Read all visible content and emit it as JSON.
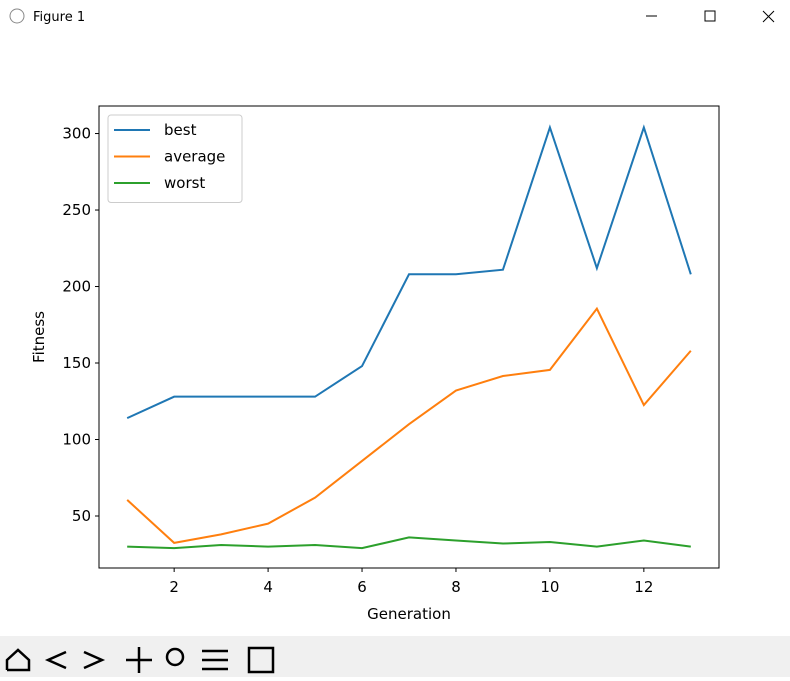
{
  "window": {
    "title": "Figure 1"
  },
  "chart_data": {
    "type": "line",
    "x_label": "Generation",
    "y_label": "Fitness",
    "x": [
      1,
      2,
      3,
      4,
      5,
      6,
      7,
      8,
      9,
      10,
      11,
      12,
      13
    ],
    "series": [
      {
        "name": "best",
        "color": "#1f77b4",
        "values": [
          114,
          128,
          128,
          128,
          128,
          148,
          208,
          208,
          211,
          304,
          212,
          304,
          208
        ]
      },
      {
        "name": "average",
        "color": "#ff7f0e",
        "values": [
          60.5,
          32.4,
          38,
          45,
          62,
          86,
          110,
          132,
          141.5,
          145.5,
          185.5,
          122.5,
          158
        ]
      },
      {
        "name": "worst",
        "color": "#2ca02c",
        "values": [
          30,
          29,
          31,
          30,
          31,
          29,
          36,
          34,
          32,
          33,
          30,
          34,
          30
        ]
      }
    ],
    "xlim": [
      0.4,
      13.6
    ],
    "ylim": [
      16,
      318
    ],
    "xticks": [
      2,
      4,
      6,
      8,
      10,
      12
    ],
    "yticks": [
      50,
      100,
      150,
      200,
      250,
      300
    ],
    "legend": "upper-left",
    "grid": false
  }
}
